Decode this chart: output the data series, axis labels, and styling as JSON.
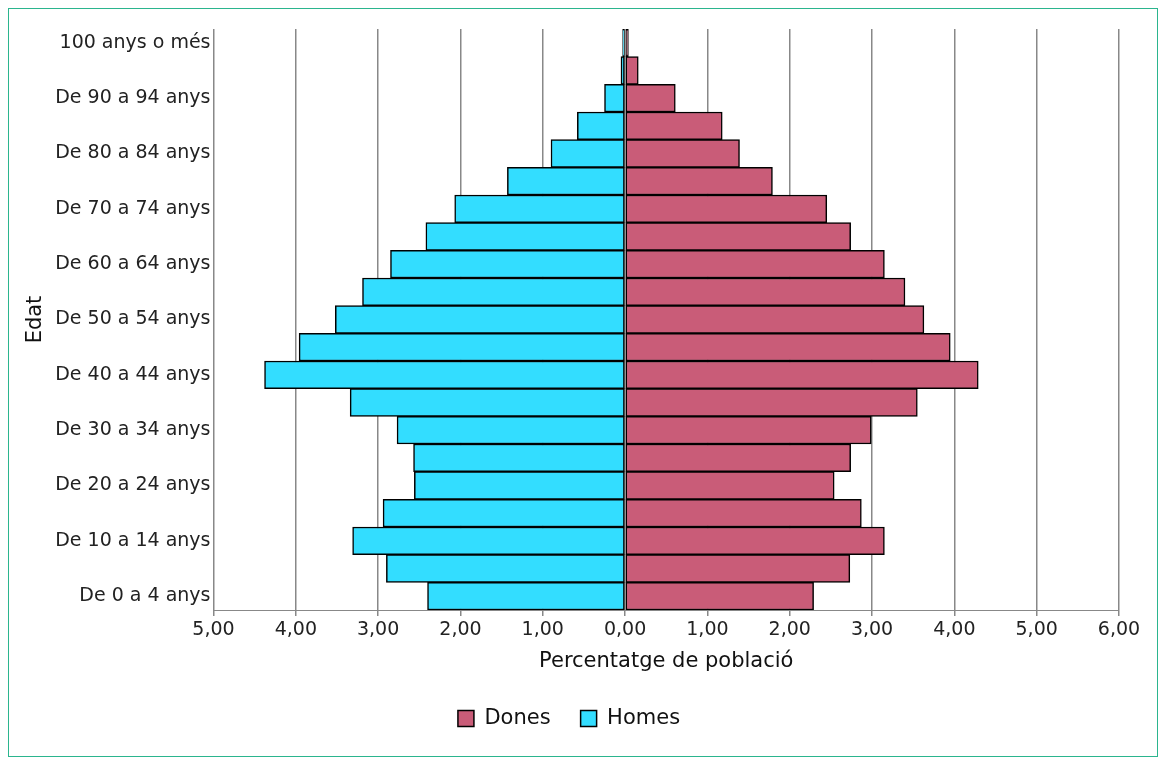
{
  "chart_data": {
    "type": "bar",
    "orientation": "horizontal",
    "stacked": true,
    "xlabel": "Percentatge de població",
    "ylabel": "Edat",
    "categories": [
      "100 anys o més",
      null,
      "De 90 a 94 anys",
      null,
      "De 80 a 84 anys",
      null,
      "De 70 a 74 anys",
      null,
      "De 60 a 64 anys",
      null,
      "De 50 a 54 anys",
      null,
      "De 40 a 44 anys",
      null,
      "De 30 a 34 anys",
      null,
      "De 20 a 24 anys",
      null,
      "De 10 a 14 anys",
      null,
      "De 0 a 4 anys"
    ],
    "series": [
      {
        "name": "Dones",
        "color": "#c95c78",
        "values": [
          0.04,
          0.16,
          0.61,
          1.18,
          1.39,
          1.79,
          2.45,
          2.74,
          3.15,
          3.4,
          3.63,
          3.95,
          4.29,
          3.55,
          2.99,
          2.74,
          2.54,
          2.87,
          3.15,
          2.73,
          2.29
        ]
      },
      {
        "name": "Homes",
        "color": "#33ddff",
        "values": [
          -0.03,
          -0.05,
          -0.25,
          -0.58,
          -0.9,
          -1.43,
          -2.07,
          -2.42,
          -2.85,
          -3.19,
          -3.52,
          -3.96,
          -4.38,
          -3.34,
          -2.77,
          -2.57,
          -2.56,
          -2.94,
          -3.31,
          -2.9,
          -2.4
        ]
      }
    ],
    "xlim": [
      -5,
      6
    ],
    "xticks": [
      {
        "value": -5,
        "label": "5,00"
      },
      {
        "value": -4,
        "label": "4,00"
      },
      {
        "value": -3,
        "label": "3,00"
      },
      {
        "value": -2,
        "label": "2,00"
      },
      {
        "value": -1,
        "label": "1,00"
      },
      {
        "value": 0,
        "label": "0,00"
      },
      {
        "value": 1,
        "label": "1,00"
      },
      {
        "value": 2,
        "label": "2,00"
      },
      {
        "value": 3,
        "label": "3,00"
      },
      {
        "value": 4,
        "label": "4,00"
      },
      {
        "value": 5,
        "label": "5,00"
      },
      {
        "value": 6,
        "label": "6,00"
      }
    ],
    "grid": "x",
    "legend": "bottom"
  }
}
